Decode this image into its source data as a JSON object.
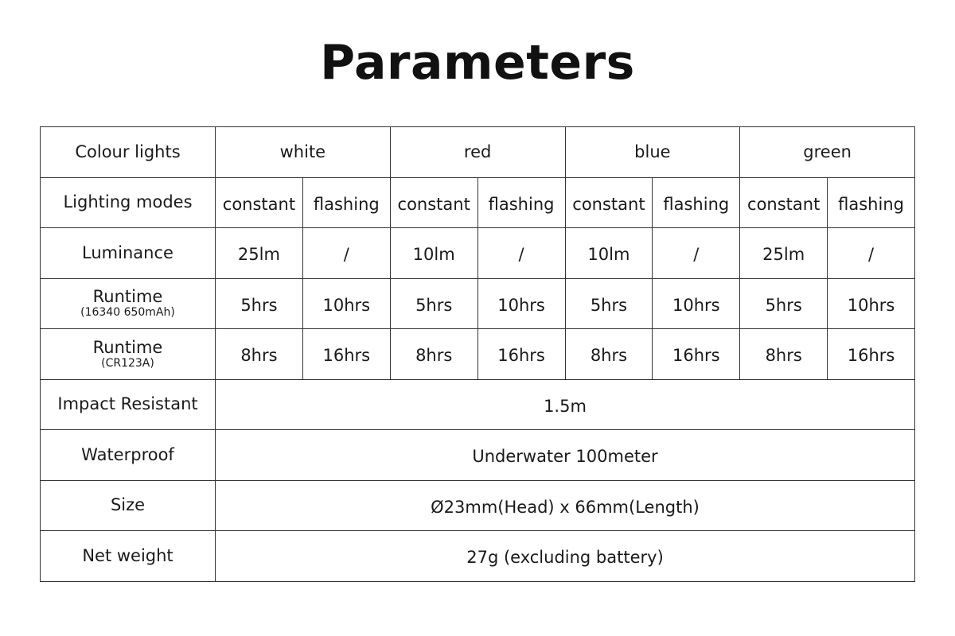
{
  "title": "Parameters",
  "colour_lights": {
    "label": "Colour lights",
    "values": [
      "white",
      "red",
      "blue",
      "green"
    ]
  },
  "lighting_modes": {
    "label": "Lighting modes",
    "values": [
      "constant",
      "flashing",
      "constant",
      "flashing",
      "constant",
      "flashing",
      "constant",
      "flashing"
    ]
  },
  "luminance": {
    "label": "Luminance",
    "values": [
      "25lm",
      "/",
      "10lm",
      "/",
      "10lm",
      "/",
      "25lm",
      "/"
    ]
  },
  "runtime_16340": {
    "label": "Runtime",
    "sublabel": "(16340 650mAh)",
    "values": [
      "5hrs",
      "10hrs",
      "5hrs",
      "10hrs",
      "5hrs",
      "10hrs",
      "5hrs",
      "10hrs"
    ]
  },
  "runtime_cr123a": {
    "label": "Runtime",
    "sublabel": "(CR123A)",
    "values": [
      "8hrs",
      "16hrs",
      "8hrs",
      "16hrs",
      "8hrs",
      "16hrs",
      "8hrs",
      "16hrs"
    ]
  },
  "impact": {
    "label": "Impact Resistant",
    "value": "1.5m"
  },
  "waterproof": {
    "label": "Waterproof",
    "value": "Underwater 100meter"
  },
  "size": {
    "label": "Size",
    "value": "Ø23mm(Head) x 66mm(Length)"
  },
  "net_weight": {
    "label": "Net weight",
    "value": "27g (excluding battery)"
  }
}
